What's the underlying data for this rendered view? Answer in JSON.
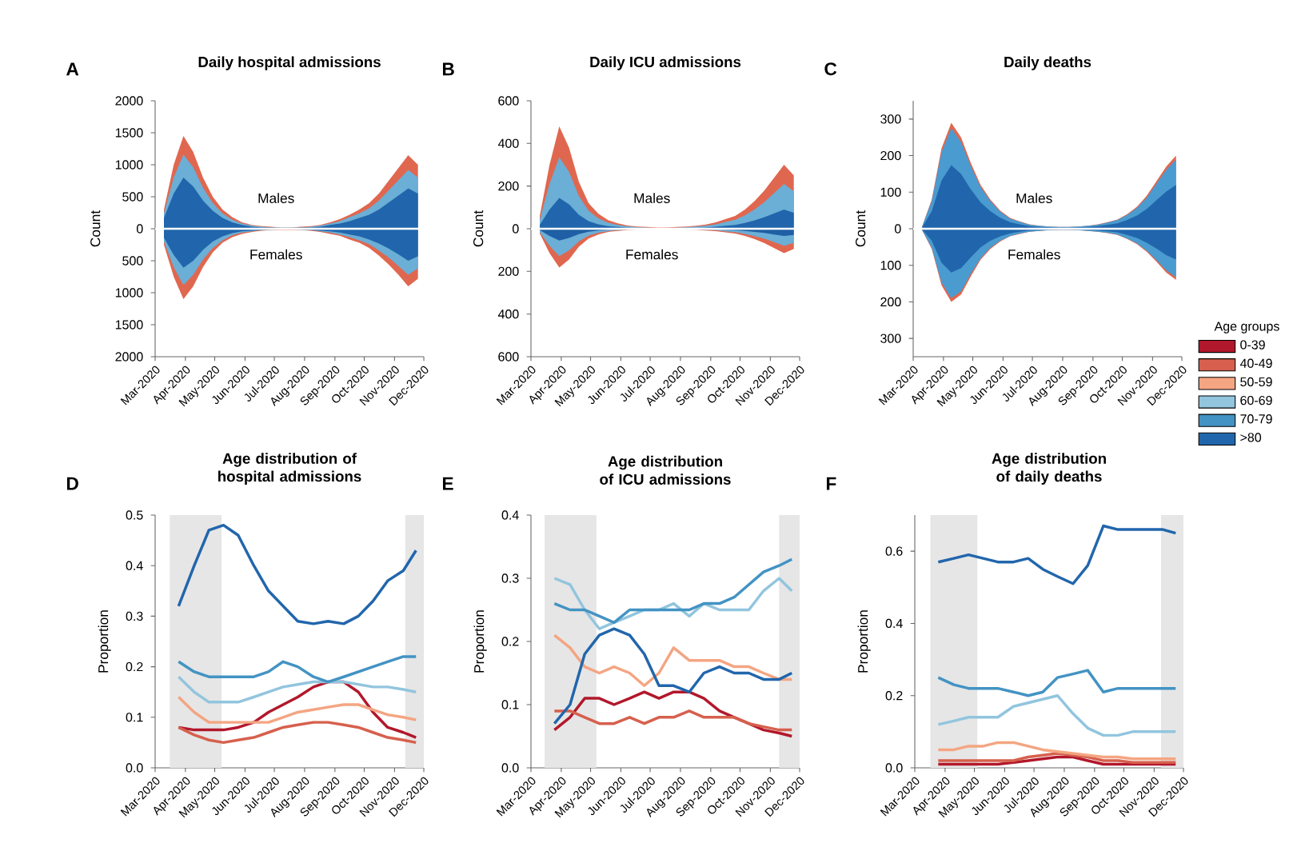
{
  "chart_data": [
    {
      "type": "area",
      "title": "Daily hospital admissions",
      "ref_lines": [
        {
          "axis": "y",
          "value": 0,
          "color": "#ffffff"
        }
      ],
      "ylabel": "Count",
      "annotations": [
        "Males",
        "Females",
        "A"
      ],
      "x": [
        "2020-03-10",
        "2020-03-20",
        "2020-03-30",
        "2020-04-09",
        "2020-04-19",
        "2020-04-29",
        "2020-05-09",
        "2020-05-19",
        "2020-05-29",
        "2020-06-08",
        "2020-06-18",
        "2020-06-28",
        "2020-07-08",
        "2020-07-18",
        "2020-07-28",
        "2020-08-07",
        "2020-08-17",
        "2020-08-27",
        "2020-09-06",
        "2020-09-16",
        "2020-09-26",
        "2020-10-06",
        "2020-10-16",
        "2020-10-26",
        "2020-11-05",
        "2020-11-15",
        "2020-11-25"
      ],
      "xlim": [
        "2020-03-01",
        "2020-12-01"
      ],
      "xticks": [
        {
          "value": "2020-03-01",
          "label": "Mar-2020"
        },
        {
          "value": "2020-04-01",
          "label": "Apr-2020"
        },
        {
          "value": "2020-05-01",
          "label": "May-2020"
        },
        {
          "value": "2020-06-01",
          "label": "Jun-2020"
        },
        {
          "value": "2020-07-01",
          "label": "Jul-2020"
        },
        {
          "value": "2020-08-01",
          "label": "Aug-2020"
        },
        {
          "value": "2020-09-01",
          "label": "Sep-2020"
        },
        {
          "value": "2020-10-01",
          "label": "Oct-2020"
        },
        {
          "value": "2020-11-01",
          "label": "Nov-2020"
        },
        {
          "value": "2020-12-01",
          "label": "Dec-2020"
        }
      ],
      "ylim": [
        -2000,
        2000
      ],
      "yticks": [
        {
          "value": -2000,
          "label": "2000"
        },
        {
          "value": -1500,
          "label": "1500"
        },
        {
          "value": -1000,
          "label": "1000"
        },
        {
          "value": -500,
          "label": "500"
        },
        0,
        500,
        1000,
        1500,
        2000
      ],
      "series": [
        {
          "color": "#e0674f",
          "values": [
            300,
            1000,
            1450,
            1200,
            800,
            500,
            300,
            180,
            100,
            60,
            40,
            30,
            20,
            20,
            30,
            40,
            60,
            100,
            150,
            220,
            300,
            400,
            550,
            750,
            950,
            1150,
            1000
          ]
        },
        {
          "color": "#6baed6",
          "values": [
            240,
            800,
            1160,
            960,
            640,
            400,
            240,
            140,
            80,
            50,
            30,
            20,
            20,
            20,
            20,
            30,
            50,
            80,
            120,
            180,
            240,
            320,
            440,
            600,
            760,
            920,
            800
          ]
        },
        {
          "color": "#2166ac",
          "values": [
            170,
            550,
            800,
            660,
            440,
            280,
            170,
            100,
            60,
            30,
            20,
            20,
            10,
            10,
            20,
            20,
            30,
            60,
            80,
            120,
            170,
            220,
            300,
            410,
            520,
            630,
            550
          ]
        },
        {
          "color": "#e0674f",
          "values": [
            -250,
            -750,
            -1100,
            -900,
            -600,
            -370,
            -220,
            -130,
            -80,
            -50,
            -30,
            -20,
            -20,
            -20,
            -20,
            -30,
            -50,
            -80,
            -110,
            -170,
            -220,
            -300,
            -420,
            -560,
            -720,
            -900,
            -780
          ]
        },
        {
          "color": "#6baed6",
          "values": [
            -200,
            -600,
            -880,
            -720,
            -480,
            -300,
            -180,
            -100,
            -60,
            -40,
            -20,
            -20,
            -10,
            -10,
            -20,
            -20,
            -40,
            -60,
            -90,
            -130,
            -180,
            -240,
            -340,
            -450,
            -580,
            -720,
            -620
          ]
        },
        {
          "color": "#2166ac",
          "values": [
            -140,
            -410,
            -610,
            -500,
            -330,
            -200,
            -120,
            -70,
            -40,
            -30,
            -20,
            -10,
            -10,
            -10,
            -10,
            -20,
            -30,
            -40,
            -60,
            -90,
            -120,
            -170,
            -230,
            -310,
            -400,
            -500,
            -430
          ]
        }
      ]
    },
    {
      "type": "area",
      "title": "Daily ICU admissions",
      "ref_lines": [
        {
          "axis": "y",
          "value": 0,
          "color": "#ffffff"
        }
      ],
      "ylabel": "Count",
      "annotations": [
        "Males",
        "Females",
        "B"
      ],
      "x": [
        "2020-03-10",
        "2020-03-20",
        "2020-03-30",
        "2020-04-09",
        "2020-04-19",
        "2020-04-29",
        "2020-05-09",
        "2020-05-19",
        "2020-05-29",
        "2020-06-08",
        "2020-06-18",
        "2020-06-28",
        "2020-07-08",
        "2020-07-18",
        "2020-07-28",
        "2020-08-07",
        "2020-08-17",
        "2020-08-27",
        "2020-09-06",
        "2020-09-16",
        "2020-09-26",
        "2020-10-06",
        "2020-10-16",
        "2020-10-26",
        "2020-11-05",
        "2020-11-15",
        "2020-11-25"
      ],
      "xlim": [
        "2020-03-01",
        "2020-12-01"
      ],
      "xticks": [
        {
          "value": "2020-03-01",
          "label": "Mar-2020"
        },
        {
          "value": "2020-04-01",
          "label": "Apr-2020"
        },
        {
          "value": "2020-05-01",
          "label": "May-2020"
        },
        {
          "value": "2020-06-01",
          "label": "Jun-2020"
        },
        {
          "value": "2020-07-01",
          "label": "Jul-2020"
        },
        {
          "value": "2020-08-01",
          "label": "Aug-2020"
        },
        {
          "value": "2020-09-01",
          "label": "Sep-2020"
        },
        {
          "value": "2020-10-01",
          "label": "Oct-2020"
        },
        {
          "value": "2020-11-01",
          "label": "Nov-2020"
        },
        {
          "value": "2020-12-01",
          "label": "Dec-2020"
        }
      ],
      "ylim": [
        -600,
        600
      ],
      "yticks": [
        {
          "value": -600,
          "label": "600"
        },
        {
          "value": -400,
          "label": "400"
        },
        {
          "value": -200,
          "label": "200"
        },
        0,
        200,
        400,
        600
      ],
      "series": [
        {
          "color": "#e0674f",
          "values": [
            60,
            300,
            480,
            380,
            220,
            120,
            70,
            40,
            25,
            15,
            10,
            8,
            6,
            6,
            8,
            10,
            14,
            20,
            30,
            45,
            60,
            90,
            130,
            180,
            240,
            300,
            250
          ]
        },
        {
          "color": "#6baed6",
          "values": [
            42,
            210,
            336,
            266,
            154,
            84,
            49,
            28,
            18,
            11,
            7,
            5,
            4,
            4,
            5,
            7,
            10,
            14,
            21,
            32,
            42,
            63,
            91,
            126,
            168,
            210,
            175
          ]
        },
        {
          "color": "#2166ac",
          "values": [
            18,
            90,
            144,
            114,
            66,
            36,
            21,
            12,
            8,
            5,
            3,
            2,
            2,
            2,
            2,
            3,
            4,
            6,
            9,
            14,
            18,
            27,
            39,
            54,
            72,
            90,
            75
          ]
        },
        {
          "color": "#e0674f",
          "values": [
            -23,
            -114,
            -182,
            -144,
            -84,
            -46,
            -27,
            -15,
            -10,
            -6,
            -4,
            -3,
            -2,
            -2,
            -3,
            -4,
            -5,
            -8,
            -11,
            -17,
            -23,
            -34,
            -49,
            -68,
            -91,
            -114,
            -95
          ]
        },
        {
          "color": "#6baed6",
          "values": [
            -16,
            -80,
            -128,
            -101,
            -59,
            -32,
            -19,
            -11,
            -7,
            -4,
            -3,
            -2,
            -2,
            -2,
            -2,
            -3,
            -4,
            -5,
            -7,
            -12,
            -16,
            -24,
            -35,
            -47,
            -63,
            -80,
            -67
          ]
        },
        {
          "color": "#1f5fa5",
          "values": [
            -7,
            -34,
            -55,
            -43,
            -25,
            -14,
            -8,
            -5,
            -3,
            -2,
            -1,
            -1,
            -1,
            -1,
            -1,
            -1,
            -2,
            -2,
            -3,
            -5,
            -7,
            -10,
            -15,
            -20,
            -27,
            -34,
            -29
          ]
        }
      ]
    },
    {
      "type": "area",
      "title": "Daily deaths",
      "ref_lines": [
        {
          "axis": "y",
          "value": 0,
          "color": "#ffffff"
        }
      ],
      "ylabel": "Count",
      "annotations": [
        "Males",
        "Females",
        "C"
      ],
      "x": [
        "2020-03-10",
        "2020-03-20",
        "2020-03-30",
        "2020-04-09",
        "2020-04-19",
        "2020-04-29",
        "2020-05-09",
        "2020-05-19",
        "2020-05-29",
        "2020-06-08",
        "2020-06-18",
        "2020-06-28",
        "2020-07-08",
        "2020-07-18",
        "2020-07-28",
        "2020-08-07",
        "2020-08-17",
        "2020-08-27",
        "2020-09-06",
        "2020-09-16",
        "2020-09-26",
        "2020-10-06",
        "2020-10-16",
        "2020-10-26",
        "2020-11-05",
        "2020-11-15",
        "2020-11-25"
      ],
      "xlim": [
        "2020-03-01",
        "2020-12-01"
      ],
      "xticks": [
        {
          "value": "2020-03-01",
          "label": "Mar-2020"
        },
        {
          "value": "2020-04-01",
          "label": "Apr-2020"
        },
        {
          "value": "2020-05-01",
          "label": "May-2020"
        },
        {
          "value": "2020-06-01",
          "label": "Jun-2020"
        },
        {
          "value": "2020-07-01",
          "label": "Jul-2020"
        },
        {
          "value": "2020-08-01",
          "label": "Aug-2020"
        },
        {
          "value": "2020-09-01",
          "label": "Sep-2020"
        },
        {
          "value": "2020-10-01",
          "label": "Oct-2020"
        },
        {
          "value": "2020-11-01",
          "label": "Nov-2020"
        },
        {
          "value": "2020-12-01",
          "label": "Dec-2020"
        }
      ],
      "ylim": [
        -350,
        350
      ],
      "yticks": [
        {
          "value": -300,
          "label": "300"
        },
        {
          "value": -200,
          "label": "200"
        },
        {
          "value": -100,
          "label": "100"
        },
        0,
        100,
        200,
        300
      ],
      "series": [
        {
          "color": "#e0674f",
          "values": [
            5,
            80,
            220,
            290,
            250,
            180,
            120,
            80,
            50,
            30,
            20,
            12,
            8,
            6,
            5,
            5,
            6,
            8,
            12,
            18,
            25,
            40,
            60,
            90,
            130,
            170,
            200
          ]
        },
        {
          "color": "#4a9bd0",
          "values": [
            5,
            76,
            209,
            275,
            237,
            171,
            114,
            76,
            47,
            28,
            19,
            11,
            8,
            6,
            5,
            5,
            6,
            8,
            11,
            17,
            24,
            38,
            57,
            85,
            123,
            161,
            190
          ]
        },
        {
          "color": "#2166ac",
          "values": [
            3,
            48,
            132,
            174,
            150,
            108,
            72,
            48,
            30,
            18,
            12,
            7,
            5,
            4,
            3,
            3,
            4,
            5,
            7,
            11,
            15,
            24,
            36,
            54,
            78,
            102,
            120
          ]
        },
        {
          "color": "#e0674f",
          "values": [
            -3,
            -55,
            -155,
            -200,
            -180,
            -130,
            -85,
            -55,
            -35,
            -21,
            -14,
            -8,
            -6,
            -4,
            -3,
            -3,
            -4,
            -6,
            -8,
            -12,
            -17,
            -28,
            -42,
            -63,
            -90,
            -120,
            -140
          ]
        },
        {
          "color": "#4a9bd0",
          "values": [
            -3,
            -52,
            -147,
            -190,
            -171,
            -123,
            -81,
            -52,
            -33,
            -20,
            -13,
            -8,
            -6,
            -4,
            -3,
            -3,
            -4,
            -6,
            -8,
            -11,
            -16,
            -27,
            -40,
            -60,
            -86,
            -114,
            -133
          ]
        },
        {
          "color": "#2166ac",
          "values": [
            -2,
            -33,
            -93,
            -120,
            -108,
            -78,
            -51,
            -33,
            -21,
            -13,
            -8,
            -5,
            -4,
            -2,
            -2,
            -2,
            -2,
            -4,
            -5,
            -7,
            -10,
            -17,
            -25,
            -38,
            -54,
            -72,
            -84
          ]
        }
      ]
    },
    {
      "type": "line",
      "title": "Age distribution of hospital admissions",
      "ylabel": "Proportion",
      "annotations": [
        "D"
      ],
      "x": [
        "2020-03-25",
        "2020-04-10",
        "2020-04-25",
        "2020-05-10",
        "2020-05-25",
        "2020-06-10",
        "2020-06-25",
        "2020-07-10",
        "2020-07-25",
        "2020-08-10",
        "2020-08-25",
        "2020-09-10",
        "2020-09-25",
        "2020-10-10",
        "2020-10-25",
        "2020-11-10",
        "2020-11-23"
      ],
      "xlim": [
        "2020-03-01",
        "2020-12-01"
      ],
      "xticks": [
        {
          "value": "2020-03-01",
          "label": "Mar-2020"
        },
        {
          "value": "2020-04-01",
          "label": "Apr-2020"
        },
        {
          "value": "2020-05-01",
          "label": "May-2020"
        },
        {
          "value": "2020-06-01",
          "label": "Jun-2020"
        },
        {
          "value": "2020-07-01",
          "label": "Jul-2020"
        },
        {
          "value": "2020-08-01",
          "label": "Aug-2020"
        },
        {
          "value": "2020-09-01",
          "label": "Sep-2020"
        },
        {
          "value": "2020-10-01",
          "label": "Oct-2020"
        },
        {
          "value": "2020-11-01",
          "label": "Nov-2020"
        },
        {
          "value": "2020-12-01",
          "label": "Dec-2020"
        }
      ],
      "ylim": [
        0,
        0.5
      ],
      "yticks": [
        {
          "value": 0,
          "label": "0.0"
        },
        0.1,
        0.2,
        0.3,
        0.4,
        0.5
      ],
      "bands": [
        {
          "axis": "x",
          "from": "2020-03-16",
          "to": "2020-05-08",
          "color": "#e6e6e6"
        },
        {
          "axis": "x",
          "from": "2020-11-12",
          "to": "2020-12-01",
          "color": "#e6e6e6"
        }
      ],
      "series": [
        {
          "color": "#b2182b",
          "values": [
            0.08,
            0.075,
            0.075,
            0.075,
            0.08,
            0.09,
            0.11,
            0.125,
            0.14,
            0.16,
            0.17,
            0.17,
            0.15,
            0.11,
            0.08,
            0.07,
            0.06
          ]
        },
        {
          "color": "#d6604d",
          "values": [
            0.08,
            0.065,
            0.055,
            0.05,
            0.055,
            0.06,
            0.07,
            0.08,
            0.085,
            0.09,
            0.09,
            0.085,
            0.08,
            0.07,
            0.06,
            0.055,
            0.05
          ]
        },
        {
          "color": "#f4a582",
          "values": [
            0.14,
            0.11,
            0.09,
            0.09,
            0.09,
            0.09,
            0.09,
            0.1,
            0.11,
            0.115,
            0.12,
            0.125,
            0.125,
            0.115,
            0.105,
            0.1,
            0.095
          ]
        },
        {
          "color": "#92c5de",
          "values": [
            0.18,
            0.15,
            0.13,
            0.13,
            0.13,
            0.14,
            0.15,
            0.16,
            0.165,
            0.17,
            0.17,
            0.17,
            0.165,
            0.16,
            0.16,
            0.155,
            0.15
          ]
        },
        {
          "color": "#4393c3",
          "values": [
            0.21,
            0.19,
            0.18,
            0.18,
            0.18,
            0.18,
            0.19,
            0.21,
            0.2,
            0.18,
            0.17,
            0.18,
            0.19,
            0.2,
            0.21,
            0.22,
            0.22
          ]
        },
        {
          "color": "#2166ac",
          "values": [
            0.32,
            0.4,
            0.47,
            0.48,
            0.46,
            0.4,
            0.35,
            0.32,
            0.29,
            0.285,
            0.29,
            0.285,
            0.3,
            0.33,
            0.37,
            0.39,
            0.43
          ]
        }
      ]
    },
    {
      "type": "line",
      "title": "Age distribution of ICU admissions",
      "ylabel": "Proportion",
      "annotations": [
        "E"
      ],
      "x": [
        "2020-03-25",
        "2020-04-10",
        "2020-04-25",
        "2020-05-10",
        "2020-05-25",
        "2020-06-10",
        "2020-06-25",
        "2020-07-10",
        "2020-07-25",
        "2020-08-10",
        "2020-08-25",
        "2020-09-10",
        "2020-09-25",
        "2020-10-10",
        "2020-10-25",
        "2020-11-10",
        "2020-11-23"
      ],
      "xlim": [
        "2020-03-01",
        "2020-12-01"
      ],
      "xticks": [
        {
          "value": "2020-03-01",
          "label": "Mar-2020"
        },
        {
          "value": "2020-04-01",
          "label": "Apr-2020"
        },
        {
          "value": "2020-05-01",
          "label": "May-2020"
        },
        {
          "value": "2020-06-01",
          "label": "Jun-2020"
        },
        {
          "value": "2020-07-01",
          "label": "Jul-2020"
        },
        {
          "value": "2020-08-01",
          "label": "Aug-2020"
        },
        {
          "value": "2020-09-01",
          "label": "Sep-2020"
        },
        {
          "value": "2020-10-01",
          "label": "Oct-2020"
        },
        {
          "value": "2020-11-01",
          "label": "Nov-2020"
        },
        {
          "value": "2020-12-01",
          "label": "Dec-2020"
        }
      ],
      "ylim": [
        0,
        0.4
      ],
      "yticks": [
        {
          "value": 0,
          "label": "0.0"
        },
        0.1,
        0.2,
        0.3,
        0.4
      ],
      "bands": [
        {
          "axis": "x",
          "from": "2020-03-15",
          "to": "2020-05-07",
          "color": "#e6e6e6"
        },
        {
          "axis": "x",
          "from": "2020-11-10",
          "to": "2020-12-01",
          "color": "#e6e6e6"
        }
      ],
      "series": [
        {
          "color": "#b2182b",
          "values": [
            0.06,
            0.08,
            0.11,
            0.11,
            0.1,
            0.11,
            0.12,
            0.11,
            0.12,
            0.12,
            0.11,
            0.09,
            0.08,
            0.07,
            0.06,
            0.055,
            0.05
          ]
        },
        {
          "color": "#d6604d",
          "values": [
            0.09,
            0.09,
            0.08,
            0.07,
            0.07,
            0.08,
            0.07,
            0.08,
            0.08,
            0.09,
            0.08,
            0.08,
            0.08,
            0.07,
            0.065,
            0.06,
            0.06
          ]
        },
        {
          "color": "#f4a582",
          "values": [
            0.21,
            0.19,
            0.16,
            0.15,
            0.16,
            0.15,
            0.13,
            0.15,
            0.19,
            0.17,
            0.17,
            0.17,
            0.16,
            0.16,
            0.15,
            0.14,
            0.14
          ]
        },
        {
          "color": "#92c5de",
          "values": [
            0.3,
            0.29,
            0.25,
            0.22,
            0.23,
            0.24,
            0.25,
            0.25,
            0.26,
            0.24,
            0.26,
            0.25,
            0.25,
            0.25,
            0.28,
            0.3,
            0.28
          ]
        },
        {
          "color": "#4393c3",
          "values": [
            0.26,
            0.25,
            0.25,
            0.24,
            0.23,
            0.25,
            0.25,
            0.25,
            0.25,
            0.25,
            0.26,
            0.26,
            0.27,
            0.29,
            0.31,
            0.32,
            0.33
          ]
        },
        {
          "color": "#2166ac",
          "values": [
            0.07,
            0.1,
            0.18,
            0.21,
            0.22,
            0.21,
            0.18,
            0.13,
            0.13,
            0.12,
            0.15,
            0.16,
            0.15,
            0.15,
            0.14,
            0.14,
            0.15
          ]
        }
      ]
    },
    {
      "type": "line",
      "title": "Age distribution of daily deaths",
      "ylabel": "Proportion",
      "annotations": [
        "F"
      ],
      "legend": "right",
      "legend_title": "Age groups",
      "x": [
        "2020-03-25",
        "2020-04-10",
        "2020-04-25",
        "2020-05-10",
        "2020-05-25",
        "2020-06-10",
        "2020-06-25",
        "2020-07-10",
        "2020-07-25",
        "2020-08-10",
        "2020-08-25",
        "2020-09-10",
        "2020-09-25",
        "2020-10-10",
        "2020-10-25",
        "2020-11-10",
        "2020-11-23"
      ],
      "xlim": [
        "2020-03-01",
        "2020-12-01"
      ],
      "xticks": [
        {
          "value": "2020-03-01",
          "label": "Mar-2020"
        },
        {
          "value": "2020-04-01",
          "label": "Apr-2020"
        },
        {
          "value": "2020-05-01",
          "label": "May-2020"
        },
        {
          "value": "2020-06-01",
          "label": "Jun-2020"
        },
        {
          "value": "2020-07-01",
          "label": "Jul-2020"
        },
        {
          "value": "2020-08-01",
          "label": "Aug-2020"
        },
        {
          "value": "2020-09-01",
          "label": "Sep-2020"
        },
        {
          "value": "2020-10-01",
          "label": "Oct-2020"
        },
        {
          "value": "2020-11-01",
          "label": "Nov-2020"
        },
        {
          "value": "2020-12-01",
          "label": "Dec-2020"
        }
      ],
      "ylim": [
        0,
        0.7
      ],
      "yticks": [
        {
          "value": 0,
          "label": "0.0"
        },
        0.2,
        0.4,
        0.6
      ],
      "bands": [
        {
          "axis": "x",
          "from": "2020-03-17",
          "to": "2020-05-04",
          "color": "#e6e6e6"
        },
        {
          "axis": "x",
          "from": "2020-11-08",
          "to": "2020-12-01",
          "color": "#e6e6e6"
        }
      ],
      "series": [
        {
          "name": "0-39",
          "color": "#b2182b",
          "values": [
            0.01,
            0.01,
            0.01,
            0.01,
            0.01,
            0.015,
            0.02,
            0.025,
            0.03,
            0.03,
            0.02,
            0.01,
            0.01,
            0.01,
            0.01,
            0.01,
            0.01
          ]
        },
        {
          "name": "40-49",
          "color": "#d6604d",
          "values": [
            0.02,
            0.02,
            0.02,
            0.02,
            0.02,
            0.02,
            0.03,
            0.035,
            0.04,
            0.035,
            0.03,
            0.02,
            0.02,
            0.015,
            0.015,
            0.015,
            0.015
          ]
        },
        {
          "name": "50-59",
          "color": "#f4a582",
          "values": [
            0.05,
            0.05,
            0.06,
            0.06,
            0.07,
            0.07,
            0.06,
            0.05,
            0.045,
            0.04,
            0.035,
            0.03,
            0.03,
            0.025,
            0.025,
            0.025,
            0.025
          ]
        },
        {
          "name": "60-69",
          "color": "#92c5de",
          "values": [
            0.12,
            0.13,
            0.14,
            0.14,
            0.14,
            0.17,
            0.18,
            0.19,
            0.2,
            0.15,
            0.11,
            0.09,
            0.09,
            0.1,
            0.1,
            0.1,
            0.1
          ]
        },
        {
          "name": "70-79",
          "color": "#4393c3",
          "values": [
            0.25,
            0.23,
            0.22,
            0.22,
            0.22,
            0.21,
            0.2,
            0.21,
            0.25,
            0.26,
            0.27,
            0.21,
            0.22,
            0.22,
            0.22,
            0.22,
            0.22
          ]
        },
        {
          "name": ">80",
          "color": "#2166ac",
          "values": [
            0.57,
            0.58,
            0.59,
            0.58,
            0.57,
            0.57,
            0.58,
            0.55,
            0.53,
            0.51,
            0.56,
            0.67,
            0.66,
            0.66,
            0.66,
            0.66,
            0.65
          ]
        }
      ]
    }
  ]
}
